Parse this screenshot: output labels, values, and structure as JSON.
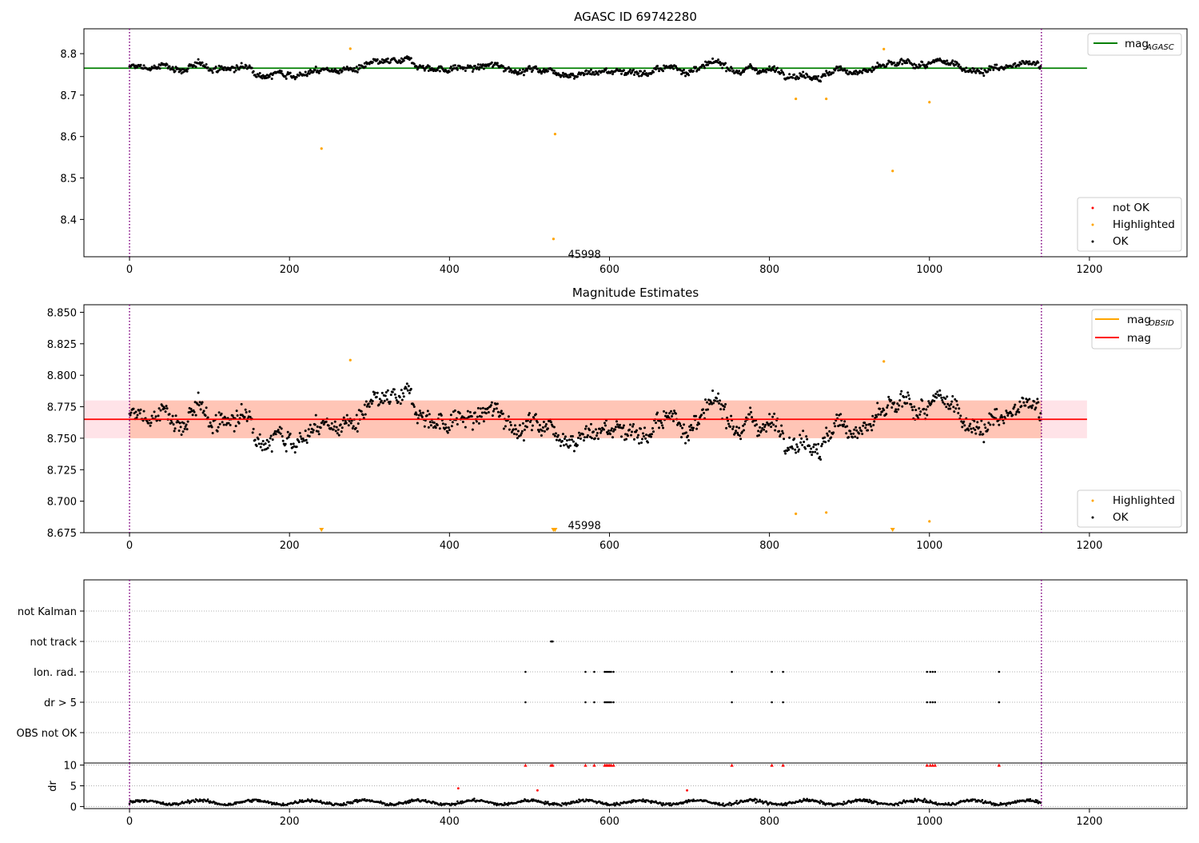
{
  "colors": {
    "ok": "#000000",
    "highlighted": "#ffa500",
    "not_ok": "#ff0000",
    "mag_agasc_line": "#008000",
    "mag_line": "#ff0000",
    "mag_obsid_line": "#ffa500",
    "band_outer": "#ffc0cb",
    "band_inner": "#ffa07a",
    "vline": "#800080"
  },
  "chart_data": [
    {
      "type": "scatter",
      "title": "AGASC ID 69742280",
      "xlim": [
        -57,
        1322
      ],
      "ylim": [
        8.31,
        8.86
      ],
      "xticks": [
        0,
        200,
        400,
        600,
        800,
        1000,
        1200
      ],
      "yticks": [
        8.4,
        8.5,
        8.6,
        8.7,
        8.8
      ],
      "mag_agasc": 8.765,
      "mag_agasc_xrange": [
        -57,
        1197
      ],
      "vlines": [
        0,
        1140
      ],
      "annotation": {
        "text": "45998",
        "x": 548,
        "y": 8.317
      },
      "ok_series": {
        "n": 1140,
        "baseline": 8.765,
        "spread": 0.012
      },
      "highlighted_points": [
        {
          "x": 240,
          "y": 8.571
        },
        {
          "x": 276,
          "y": 8.812
        },
        {
          "x": 532,
          "y": 8.606
        },
        {
          "x": 530,
          "y": 8.353
        },
        {
          "x": 833,
          "y": 8.691
        },
        {
          "x": 871,
          "y": 8.691
        },
        {
          "x": 943,
          "y": 8.811
        },
        {
          "x": 954,
          "y": 8.517
        },
        {
          "x": 1000,
          "y": 8.683
        }
      ],
      "legend_top": {
        "label": "mag",
        "sub": "AGASC"
      },
      "legend_bottom": [
        {
          "label": "not OK",
          "color": "#ff0000"
        },
        {
          "label": "Highlighted",
          "color": "#ffa500"
        },
        {
          "label": "OK",
          "color": "#000000"
        }
      ]
    },
    {
      "type": "scatter",
      "title": "Magnitude Estimates",
      "xlim": [
        -57,
        1322
      ],
      "ylim": [
        8.675,
        8.856
      ],
      "xticks": [
        0,
        200,
        400,
        600,
        800,
        1000,
        1200
      ],
      "yticks": [
        8.675,
        8.7,
        8.725,
        8.75,
        8.775,
        8.8,
        8.825,
        8.85
      ],
      "ytick_labels": [
        "8.675",
        "8.700",
        "8.725",
        "8.750",
        "8.775",
        "8.800",
        "8.825",
        "8.850"
      ],
      "mag": 8.765,
      "band": [
        8.75,
        8.78
      ],
      "band_xrange": [
        -57,
        1197
      ],
      "band_inner_xrange": [
        0,
        1140
      ],
      "vlines": [
        0,
        1140
      ],
      "annotation": {
        "text": "45998",
        "x": 548,
        "y": 8.681
      },
      "highlighted_points": [
        {
          "x": 276,
          "y": 8.812
        },
        {
          "x": 833,
          "y": 8.69
        },
        {
          "x": 871,
          "y": 8.691
        },
        {
          "x": 943,
          "y": 8.811
        },
        {
          "x": 1000,
          "y": 8.684
        }
      ],
      "off_scale_markers": [
        {
          "x": 240
        },
        {
          "x": 530
        },
        {
          "x": 532
        },
        {
          "x": 954
        }
      ],
      "legend_top": [
        {
          "label": "mag",
          "sub": "OBSID",
          "color": "#ffa500"
        },
        {
          "label": "mag",
          "sub": "",
          "color": "#ff0000"
        }
      ],
      "legend_bottom": [
        {
          "label": "Highlighted",
          "color": "#ffa500"
        },
        {
          "label": "OK",
          "color": "#000000"
        }
      ]
    },
    {
      "type": "scatter",
      "title": "",
      "xlim": [
        -57,
        1322
      ],
      "yticks_categories": [
        "not Kalman",
        "not track",
        "Ion. rad.",
        "dr > 5",
        "OBS not OK"
      ],
      "vlines": [
        0,
        1140
      ],
      "flags": {
        "not_track": [
          527,
          528,
          529
        ],
        "ion_rad": [
          495,
          570,
          581,
          594,
          596,
          598,
          600,
          602,
          605,
          753,
          803,
          817,
          997,
          1001,
          1004,
          1007,
          1087
        ],
        "dr_gt_5": [
          495,
          570,
          581,
          594,
          596,
          598,
          600,
          602,
          605,
          753,
          803,
          817,
          997,
          1001,
          1004,
          1007,
          1087
        ]
      }
    },
    {
      "type": "scatter",
      "title": "",
      "xlim": [
        -57,
        1322
      ],
      "ylim": [
        -0.5,
        10.5
      ],
      "xticks": [
        0,
        200,
        400,
        600,
        800,
        1000,
        1200
      ],
      "yticks": [
        0,
        5,
        10
      ],
      "ylabel": "dr",
      "vlines": [
        0,
        1140
      ],
      "red_capped": [
        495,
        527,
        529,
        570,
        581,
        594,
        596,
        598,
        600,
        602,
        605,
        753,
        803,
        817,
        997,
        1001,
        1004,
        1007,
        1087
      ],
      "red_points": [
        {
          "x": 411,
          "y": 4.4
        },
        {
          "x": 510,
          "y": 3.9
        },
        {
          "x": 697,
          "y": 3.9
        }
      ]
    }
  ]
}
